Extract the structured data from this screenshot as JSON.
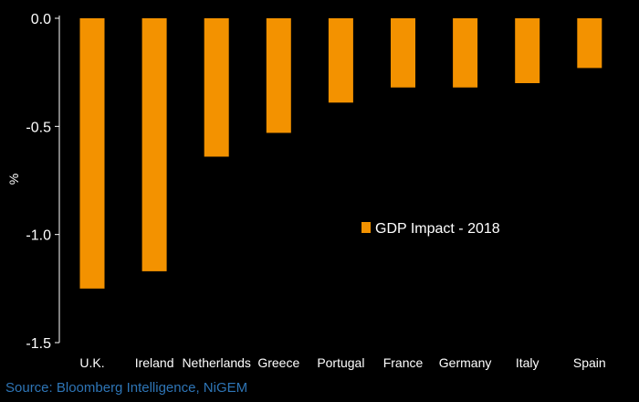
{
  "chart_data": {
    "type": "bar",
    "categories": [
      "U.K.",
      "Ireland",
      "Netherlands",
      "Greece",
      "Portugal",
      "France",
      "Germany",
      "Italy",
      "Spain"
    ],
    "series": [
      {
        "name": "GDP Impact - 2018",
        "values": [
          -1.25,
          -1.17,
          -0.64,
          -0.53,
          -0.39,
          -0.32,
          -0.32,
          -0.3,
          -0.23
        ]
      }
    ],
    "ylabel": "%",
    "xlabel": "",
    "ylim": [
      -1.5,
      0.0
    ],
    "yticks": [
      "0.0",
      "-0.5",
      "-1.0",
      "-1.5"
    ],
    "ytick_values": [
      0.0,
      -0.5,
      -1.0,
      -1.5
    ],
    "legend_position": "center-right",
    "grid": false,
    "bar_color": "#f39200",
    "axis_color": "#ffffff",
    "text_color": "#ffffff",
    "background": "#000000"
  },
  "source": "Source: Bloomberg Intelligence, NiGEM"
}
